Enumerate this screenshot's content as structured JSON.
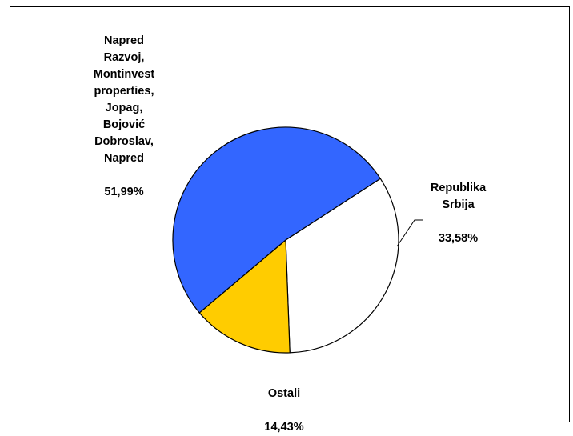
{
  "chart_data": {
    "type": "pie",
    "slices": [
      {
        "label": "Republika\nSrbija",
        "value_label": "33,58%",
        "value": 33.58,
        "color": "#FFFFFF"
      },
      {
        "label": "Ostali",
        "value_label": "14,43%",
        "value": 14.43,
        "color": "#FFCC00"
      },
      {
        "label": "Napred\nRazvoj,\nMontinvest\nproperties,\nJopag,\nBojović\nDobroslav,\nNapred",
        "value_label": "51,99%",
        "value": 51.99,
        "color": "#3366FF"
      }
    ],
    "title": "",
    "legend": "none"
  }
}
